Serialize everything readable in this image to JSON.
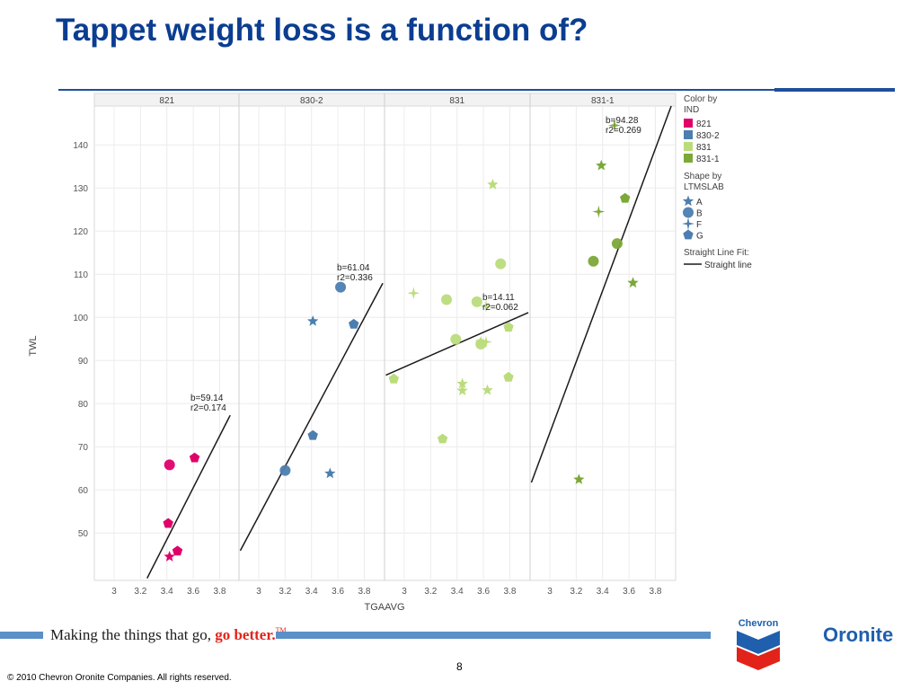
{
  "slide": {
    "title": "Tappet weight loss is a function of?",
    "page_number": "8",
    "copyright": "© 2010 Chevron Oronite Companies. All rights reserved.",
    "tagline_main": "Making the things that go, ",
    "tagline_accent": "go better.",
    "tagline_tm": "TM",
    "chevron_logo_text": "Chevron",
    "oronite_logo_text": "Oronite"
  },
  "colors": {
    "title": "#0B3D91",
    "ind_821": "#E0006A",
    "ind_830_2": "#4C7EB0",
    "ind_831": "#BBDC7C",
    "ind_831_1": "#7CA838",
    "fit_line": "#1a1a1a"
  },
  "chart_data": {
    "type": "scatter",
    "xlabel": "TGAAVG",
    "ylabel": "TWL",
    "xlim": [
      2.85,
      3.95
    ],
    "ylim": [
      39,
      149
    ],
    "x_ticks": [
      "3",
      "3.2",
      "3.4",
      "3.6",
      "3.8"
    ],
    "y_ticks": [
      "50",
      "60",
      "70",
      "80",
      "90",
      "100",
      "110",
      "120",
      "130",
      "140"
    ],
    "grid": true,
    "legend_position": "right",
    "panels": [
      {
        "name": "821",
        "color_key": "ind_821",
        "points": [
          {
            "x": 3.42,
            "y": 65.8,
            "shape": "B"
          },
          {
            "x": 3.61,
            "y": 67.4,
            "shape": "G"
          },
          {
            "x": 3.41,
            "y": 52.2,
            "shape": "G"
          },
          {
            "x": 3.48,
            "y": 45.8,
            "shape": "G"
          },
          {
            "x": 3.42,
            "y": 44.5,
            "shape": "A"
          }
        ],
        "fit": {
          "x": [
            3.25,
            3.88
          ],
          "y": [
            39.5,
            77.3
          ]
        },
        "annotation": [
          "b=59.14",
          "r2=0.174"
        ]
      },
      {
        "name": "830-2",
        "color_key": "ind_830_2",
        "points": [
          {
            "x": 3.41,
            "y": 99.1,
            "shape": "A"
          },
          {
            "x": 3.62,
            "y": 107.0,
            "shape": "B"
          },
          {
            "x": 3.72,
            "y": 98.4,
            "shape": "G"
          },
          {
            "x": 3.41,
            "y": 72.6,
            "shape": "G"
          },
          {
            "x": 3.2,
            "y": 64.5,
            "shape": "B"
          },
          {
            "x": 3.54,
            "y": 63.8,
            "shape": "A"
          }
        ],
        "fit": {
          "x": [
            2.86,
            3.94
          ],
          "y": [
            45.9,
            107.9
          ]
        },
        "annotation": [
          "b=61.04",
          "r2=0.336"
        ]
      },
      {
        "name": "831",
        "color_key": "ind_831",
        "points": [
          {
            "x": 3.67,
            "y": 130.8,
            "shape": "A"
          },
          {
            "x": 3.73,
            "y": 112.4,
            "shape": "B"
          },
          {
            "x": 3.07,
            "y": 105.6,
            "shape": "F"
          },
          {
            "x": 3.32,
            "y": 104.1,
            "shape": "B"
          },
          {
            "x": 3.55,
            "y": 103.6,
            "shape": "B"
          },
          {
            "x": 3.62,
            "y": 102.6,
            "shape": "F"
          },
          {
            "x": 3.79,
            "y": 97.7,
            "shape": "G"
          },
          {
            "x": 3.39,
            "y": 94.9,
            "shape": "B"
          },
          {
            "x": 3.58,
            "y": 94.3,
            "shape": "A"
          },
          {
            "x": 3.62,
            "y": 94.3,
            "shape": "F"
          },
          {
            "x": 3.58,
            "y": 93.8,
            "shape": "B"
          },
          {
            "x": 2.92,
            "y": 85.7,
            "shape": "G"
          },
          {
            "x": 3.79,
            "y": 86.1,
            "shape": "G"
          },
          {
            "x": 3.44,
            "y": 84.6,
            "shape": "A"
          },
          {
            "x": 3.44,
            "y": 83.0,
            "shape": "A"
          },
          {
            "x": 3.63,
            "y": 83.1,
            "shape": "A"
          },
          {
            "x": 3.29,
            "y": 71.8,
            "shape": "G"
          }
        ],
        "fit": {
          "x": [
            2.86,
            3.94
          ],
          "y": [
            86.6,
            101.1
          ]
        },
        "annotation": [
          "b=14.11",
          "r2=0.062"
        ]
      },
      {
        "name": "831-1",
        "color_key": "ind_831_1",
        "points": [
          {
            "x": 3.49,
            "y": 144.5,
            "shape": "F"
          },
          {
            "x": 3.39,
            "y": 135.2,
            "shape": "A"
          },
          {
            "x": 3.57,
            "y": 127.6,
            "shape": "G"
          },
          {
            "x": 3.37,
            "y": 124.5,
            "shape": "F"
          },
          {
            "x": 3.51,
            "y": 117.1,
            "shape": "B"
          },
          {
            "x": 3.33,
            "y": 113.0,
            "shape": "B"
          },
          {
            "x": 3.63,
            "y": 108.0,
            "shape": "A"
          },
          {
            "x": 3.22,
            "y": 62.4,
            "shape": "A"
          }
        ],
        "fit": {
          "x": [
            2.86,
            3.92
          ],
          "y": [
            61.7,
            149.0
          ]
        },
        "annotation": [
          "b=94.28",
          "r2=0.269"
        ]
      }
    ],
    "legend": {
      "color_title": [
        "Color by",
        "IND"
      ],
      "color_items": [
        {
          "label": "821",
          "color_key": "ind_821"
        },
        {
          "label": "830-2",
          "color_key": "ind_830_2"
        },
        {
          "label": "831",
          "color_key": "ind_831"
        },
        {
          "label": "831-1",
          "color_key": "ind_831_1"
        }
      ],
      "shape_title": [
        "Shape by",
        "LTMSLAB"
      ],
      "shape_items": [
        {
          "label": "A",
          "shape": "A"
        },
        {
          "label": "B",
          "shape": "B"
        },
        {
          "label": "F",
          "shape": "F"
        },
        {
          "label": "G",
          "shape": "G"
        }
      ],
      "fit_title": "Straight Line Fit:",
      "fit_item": "Straight line"
    }
  }
}
